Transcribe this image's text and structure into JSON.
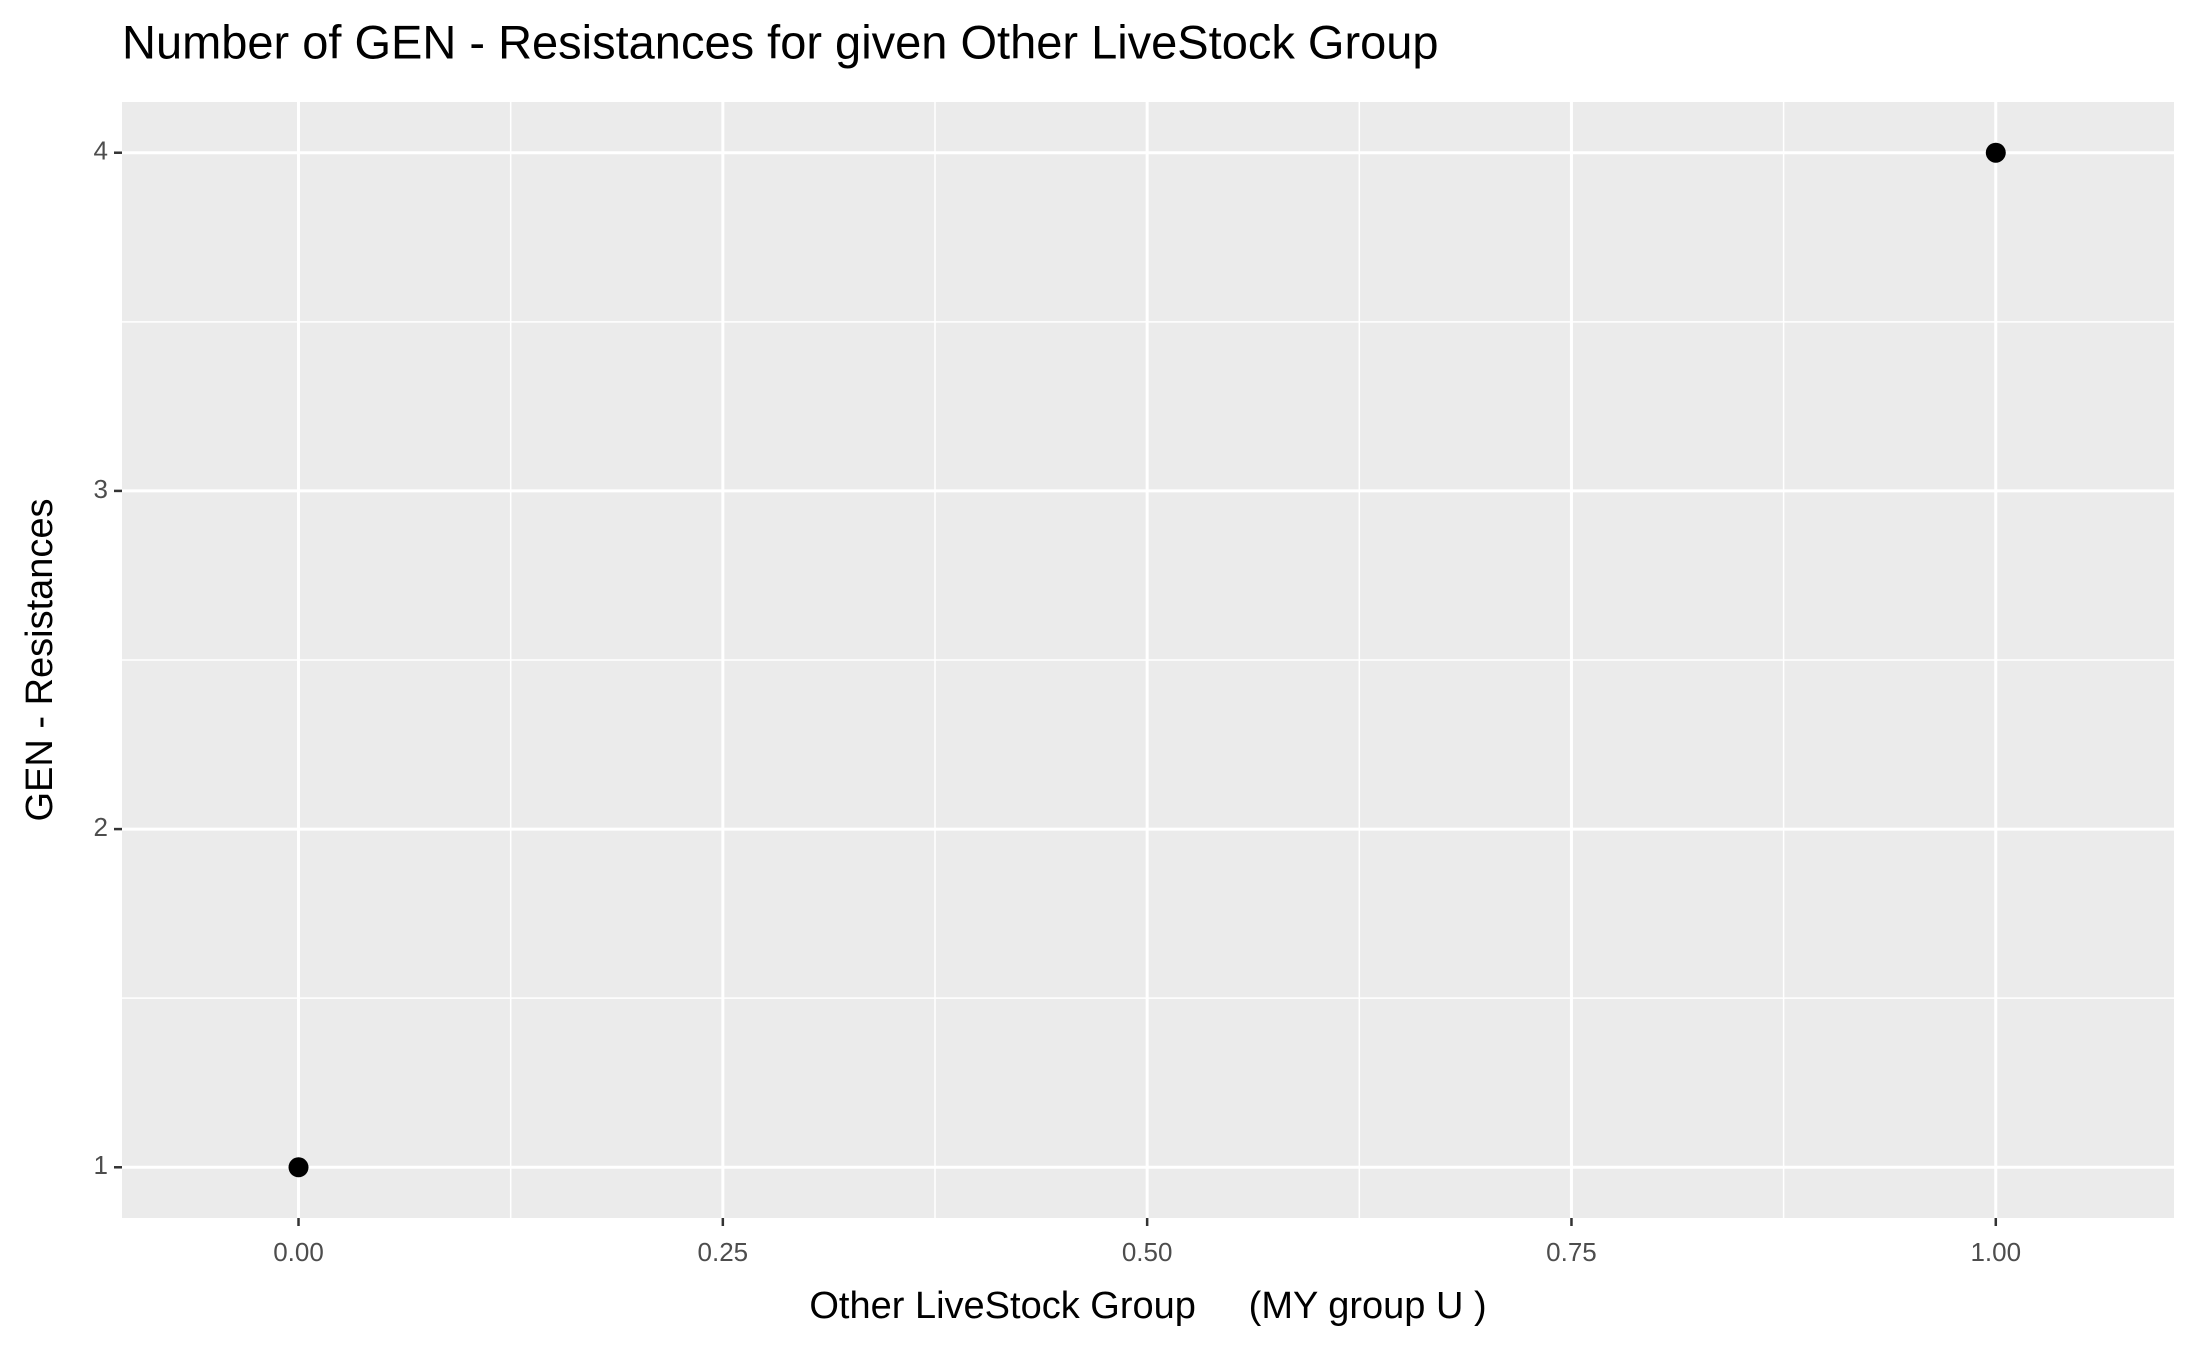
{
  "chart_data": {
    "type": "scatter",
    "title": "Number of GEN - Resistances for given Other LiveStock Group",
    "x_label": "Other LiveStock Group     (MY group U )",
    "y_label": "GEN - Resistances",
    "x": [
      0,
      1
    ],
    "values": [
      1,
      4
    ],
    "color": "#000000",
    "xlim": [
      -0.104,
      1.105
    ],
    "ylim": [
      0.85,
      4.15
    ],
    "xticks": [
      {
        "value": 0,
        "label": "0.00"
      },
      {
        "value": 0.25,
        "label": "0.25"
      },
      {
        "value": 0.5,
        "label": "0.50"
      },
      {
        "value": 0.75,
        "label": "0.75"
      },
      {
        "value": 1,
        "label": "1.00"
      }
    ],
    "yticks": [
      1,
      2,
      3,
      4
    ],
    "grid": true
  }
}
